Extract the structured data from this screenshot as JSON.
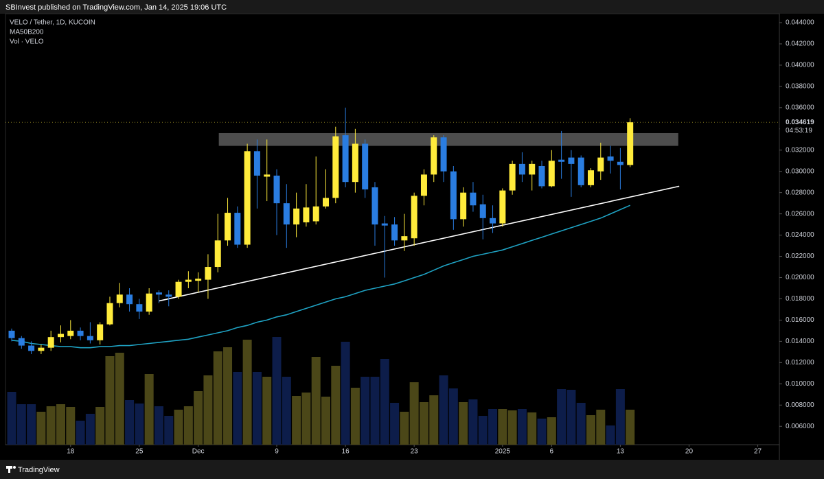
{
  "header": {
    "text": "SBInvest published on TradingView.com, Jan 14, 2025 19:06 UTC"
  },
  "footer": {
    "brand": "TradingView"
  },
  "chart_data": {
    "type": "candlestick",
    "symbol": "VELO / Tether, 1D, KUCOIN",
    "indicators": [
      "MA50B200",
      "Vol · VELO"
    ],
    "up_color": "#ffeb3b",
    "down_color": "#2a7de1",
    "volume_up_color": "#4b4718",
    "volume_down_color": "#0d1d4a",
    "categories": [
      null,
      null,
      null,
      null,
      null,
      null,
      null,
      null,
      null,
      null,
      null,
      null,
      null,
      null,
      null,
      null,
      null,
      null,
      null,
      null,
      null,
      null,
      null,
      null,
      null,
      null,
      null,
      null,
      null,
      null,
      null,
      null,
      null,
      null,
      null,
      null,
      null,
      null,
      null,
      null,
      null,
      null,
      null,
      null,
      null,
      null,
      null,
      null,
      null,
      null,
      null,
      null,
      null,
      null,
      null,
      null,
      null,
      null,
      null,
      null,
      null,
      null,
      null,
      null
    ],
    "open": [
      0.015,
      0.0143,
      0.0136,
      0.0131,
      0.0134,
      0.0144,
      0.0145,
      0.015,
      0.0145,
      0.0141,
      0.0156,
      0.0176,
      0.0184,
      0.0175,
      0.0168,
      0.0186,
      0.0184,
      0.0182,
      0.0196,
      0.0197,
      0.0198,
      0.021,
      0.0235,
      0.0261,
      0.0231,
      0.0319,
      0.0295,
      0.0296,
      0.027,
      0.025,
      0.0252,
      0.0253,
      0.0267,
      0.0275,
      0.0334,
      0.029,
      0.0326,
      0.0285,
      0.0251,
      0.025,
      0.0235,
      0.0237,
      0.0277,
      0.0297,
      0.0332,
      0.03,
      0.0255,
      0.028,
      0.0269,
      0.0256,
      0.0251,
      0.0282,
      0.0307,
      0.0297,
      0.0305,
      0.0286,
      0.0311,
      0.0313,
      0.0313,
      0.0287,
      0.03,
      0.0314,
      0.0309,
      0.0306
    ],
    "high": [
      0.0152,
      0.0145,
      0.014,
      0.0137,
      0.015,
      0.0155,
      0.016,
      0.0153,
      0.0158,
      0.0158,
      0.0182,
      0.0195,
      0.019,
      0.018,
      0.019,
      0.0188,
      0.0188,
      0.0198,
      0.0206,
      0.0205,
      0.0222,
      0.026,
      0.0275,
      0.0267,
      0.0326,
      0.033,
      0.033,
      0.0302,
      0.0288,
      0.028,
      0.0288,
      0.0314,
      0.0302,
      0.0342,
      0.036,
      0.034,
      0.033,
      0.029,
      0.0258,
      0.0257,
      0.026,
      0.028,
      0.0302,
      0.0334,
      0.0334,
      0.0305,
      0.0285,
      0.029,
      0.0278,
      0.0268,
      0.0284,
      0.031,
      0.0318,
      0.031,
      0.031,
      0.032,
      0.0338,
      0.032,
      0.0315,
      0.0303,
      0.0327,
      0.0324,
      0.0322,
      0.035
    ],
    "low": [
      0.014,
      0.0133,
      0.0128,
      0.0128,
      0.0131,
      0.0139,
      0.0142,
      0.0141,
      0.0138,
      0.0137,
      0.0155,
      0.0172,
      0.0168,
      0.0161,
      0.0165,
      0.0176,
      0.0173,
      0.018,
      0.019,
      0.0186,
      0.018,
      0.0205,
      0.023,
      0.0228,
      0.0228,
      0.0265,
      0.0272,
      0.024,
      0.0228,
      0.0238,
      0.0248,
      0.025,
      0.0265,
      0.027,
      0.0285,
      0.028,
      0.0275,
      0.023,
      0.02,
      0.023,
      0.0225,
      0.023,
      0.0268,
      0.029,
      0.029,
      0.0245,
      0.0248,
      0.0262,
      0.0236,
      0.0242,
      0.0248,
      0.0278,
      0.029,
      0.0282,
      0.0284,
      0.0285,
      0.0293,
      0.0276,
      0.0285,
      0.0285,
      0.0292,
      0.0298,
      0.0283,
      0.0304
    ],
    "close": [
      0.0143,
      0.0136,
      0.0131,
      0.0134,
      0.0144,
      0.0147,
      0.015,
      0.0145,
      0.0141,
      0.0156,
      0.0176,
      0.0184,
      0.0175,
      0.0168,
      0.0185,
      0.0184,
      0.0182,
      0.0196,
      0.0198,
      0.0199,
      0.021,
      0.0235,
      0.0261,
      0.0231,
      0.0319,
      0.0296,
      0.0297,
      0.027,
      0.025,
      0.0265,
      0.0266,
      0.0267,
      0.0275,
      0.0333,
      0.029,
      0.0326,
      0.0283,
      0.025,
      0.0249,
      0.0235,
      0.0239,
      0.0277,
      0.0297,
      0.0332,
      0.03,
      0.0255,
      0.028,
      0.0268,
      0.0256,
      0.0251,
      0.0282,
      0.0307,
      0.0297,
      0.0307,
      0.0286,
      0.031,
      0.0309,
      0.0307,
      0.0287,
      0.0301,
      0.0313,
      0.031,
      0.0306,
      0.034619
    ],
    "volume": [
      77,
      59,
      59,
      48,
      56,
      59,
      55,
      35,
      45,
      55,
      129,
      134,
      65,
      60,
      103,
      56,
      42,
      51,
      56,
      78,
      101,
      136,
      142,
      106,
      153,
      106,
      99,
      157,
      99,
      71,
      76,
      128,
      70,
      115,
      150,
      83,
      99,
      99,
      125,
      61,
      48,
      91,
      62,
      72,
      101,
      82,
      62,
      66,
      42,
      52,
      52,
      50,
      52,
      47,
      38,
      40,
      81,
      80,
      61,
      43,
      51,
      28,
      81,
      51
    ],
    "ma": {
      "color": "#1fa3c4",
      "values": [
        0.0141,
        0.014,
        0.0138,
        0.0137,
        0.0136,
        0.0135,
        0.0135,
        0.0134,
        0.0134,
        0.0135,
        0.0135,
        0.0136,
        0.0136,
        0.0137,
        0.0138,
        0.0139,
        0.014,
        0.0141,
        0.0142,
        0.0144,
        0.0146,
        0.0148,
        0.015,
        0.0153,
        0.0155,
        0.0158,
        0.016,
        0.0163,
        0.0165,
        0.0168,
        0.0171,
        0.0174,
        0.0177,
        0.018,
        0.0182,
        0.0185,
        0.0188,
        0.019,
        0.0192,
        0.0194,
        0.0197,
        0.02,
        0.0203,
        0.0207,
        0.0211,
        0.0214,
        0.0217,
        0.022,
        0.0222,
        0.0224,
        0.0226,
        0.0229,
        0.0232,
        0.0235,
        0.0238,
        0.0241,
        0.0244,
        0.0247,
        0.025,
        0.0253,
        0.0256,
        0.026,
        0.0264,
        0.0268
      ]
    },
    "trendline": {
      "color": "#ffffff",
      "x": [
        15,
        68
      ],
      "y": [
        0.0178,
        0.0286
      ]
    },
    "zone": {
      "color": "#5a5a5a",
      "x": [
        21.1,
        67.9
      ],
      "y": [
        0.0324,
        0.0336
      ]
    },
    "last_price": 0.034619,
    "countdown": "04:53:19",
    "xlim": [
      -0.63,
      78.2
    ],
    "xticks": [
      {
        "value": 6,
        "label": "18"
      },
      {
        "value": 13,
        "label": "25"
      },
      {
        "value": 19,
        "label": "Dec"
      },
      {
        "value": 27,
        "label": "9"
      },
      {
        "value": 34,
        "label": "16"
      },
      {
        "value": 41,
        "label": "23"
      },
      {
        "value": 50,
        "label": "2025"
      },
      {
        "value": 55,
        "label": "6"
      },
      {
        "value": 62,
        "label": "13"
      },
      {
        "value": 69,
        "label": "20"
      },
      {
        "value": 76,
        "label": "27"
      }
    ],
    "ylim": [
      0.00427,
      0.04484
    ],
    "yticks": [
      {
        "value": 0.044,
        "label": "0.044000"
      },
      {
        "value": 0.042,
        "label": "0.042000"
      },
      {
        "value": 0.04,
        "label": "0.040000"
      },
      {
        "value": 0.038,
        "label": "0.038000"
      },
      {
        "value": 0.036,
        "label": "0.036000"
      },
      {
        "value": 0.034,
        "label": "0.034000"
      },
      {
        "value": 0.032,
        "label": "0.032000"
      },
      {
        "value": 0.03,
        "label": "0.030000"
      },
      {
        "value": 0.028,
        "label": "0.028000"
      },
      {
        "value": 0.026,
        "label": "0.026000"
      },
      {
        "value": 0.024,
        "label": "0.024000"
      },
      {
        "value": 0.022,
        "label": "0.022000"
      },
      {
        "value": 0.02,
        "label": "0.020000"
      },
      {
        "value": 0.018,
        "label": "0.018000"
      },
      {
        "value": 0.016,
        "label": "0.016000"
      },
      {
        "value": 0.014,
        "label": "0.014000"
      },
      {
        "value": 0.012,
        "label": "0.012000"
      },
      {
        "value": 0.01,
        "label": "0.010000"
      },
      {
        "value": 0.008,
        "label": "0.008000"
      },
      {
        "value": 0.006,
        "label": "0.006000"
      }
    ]
  }
}
